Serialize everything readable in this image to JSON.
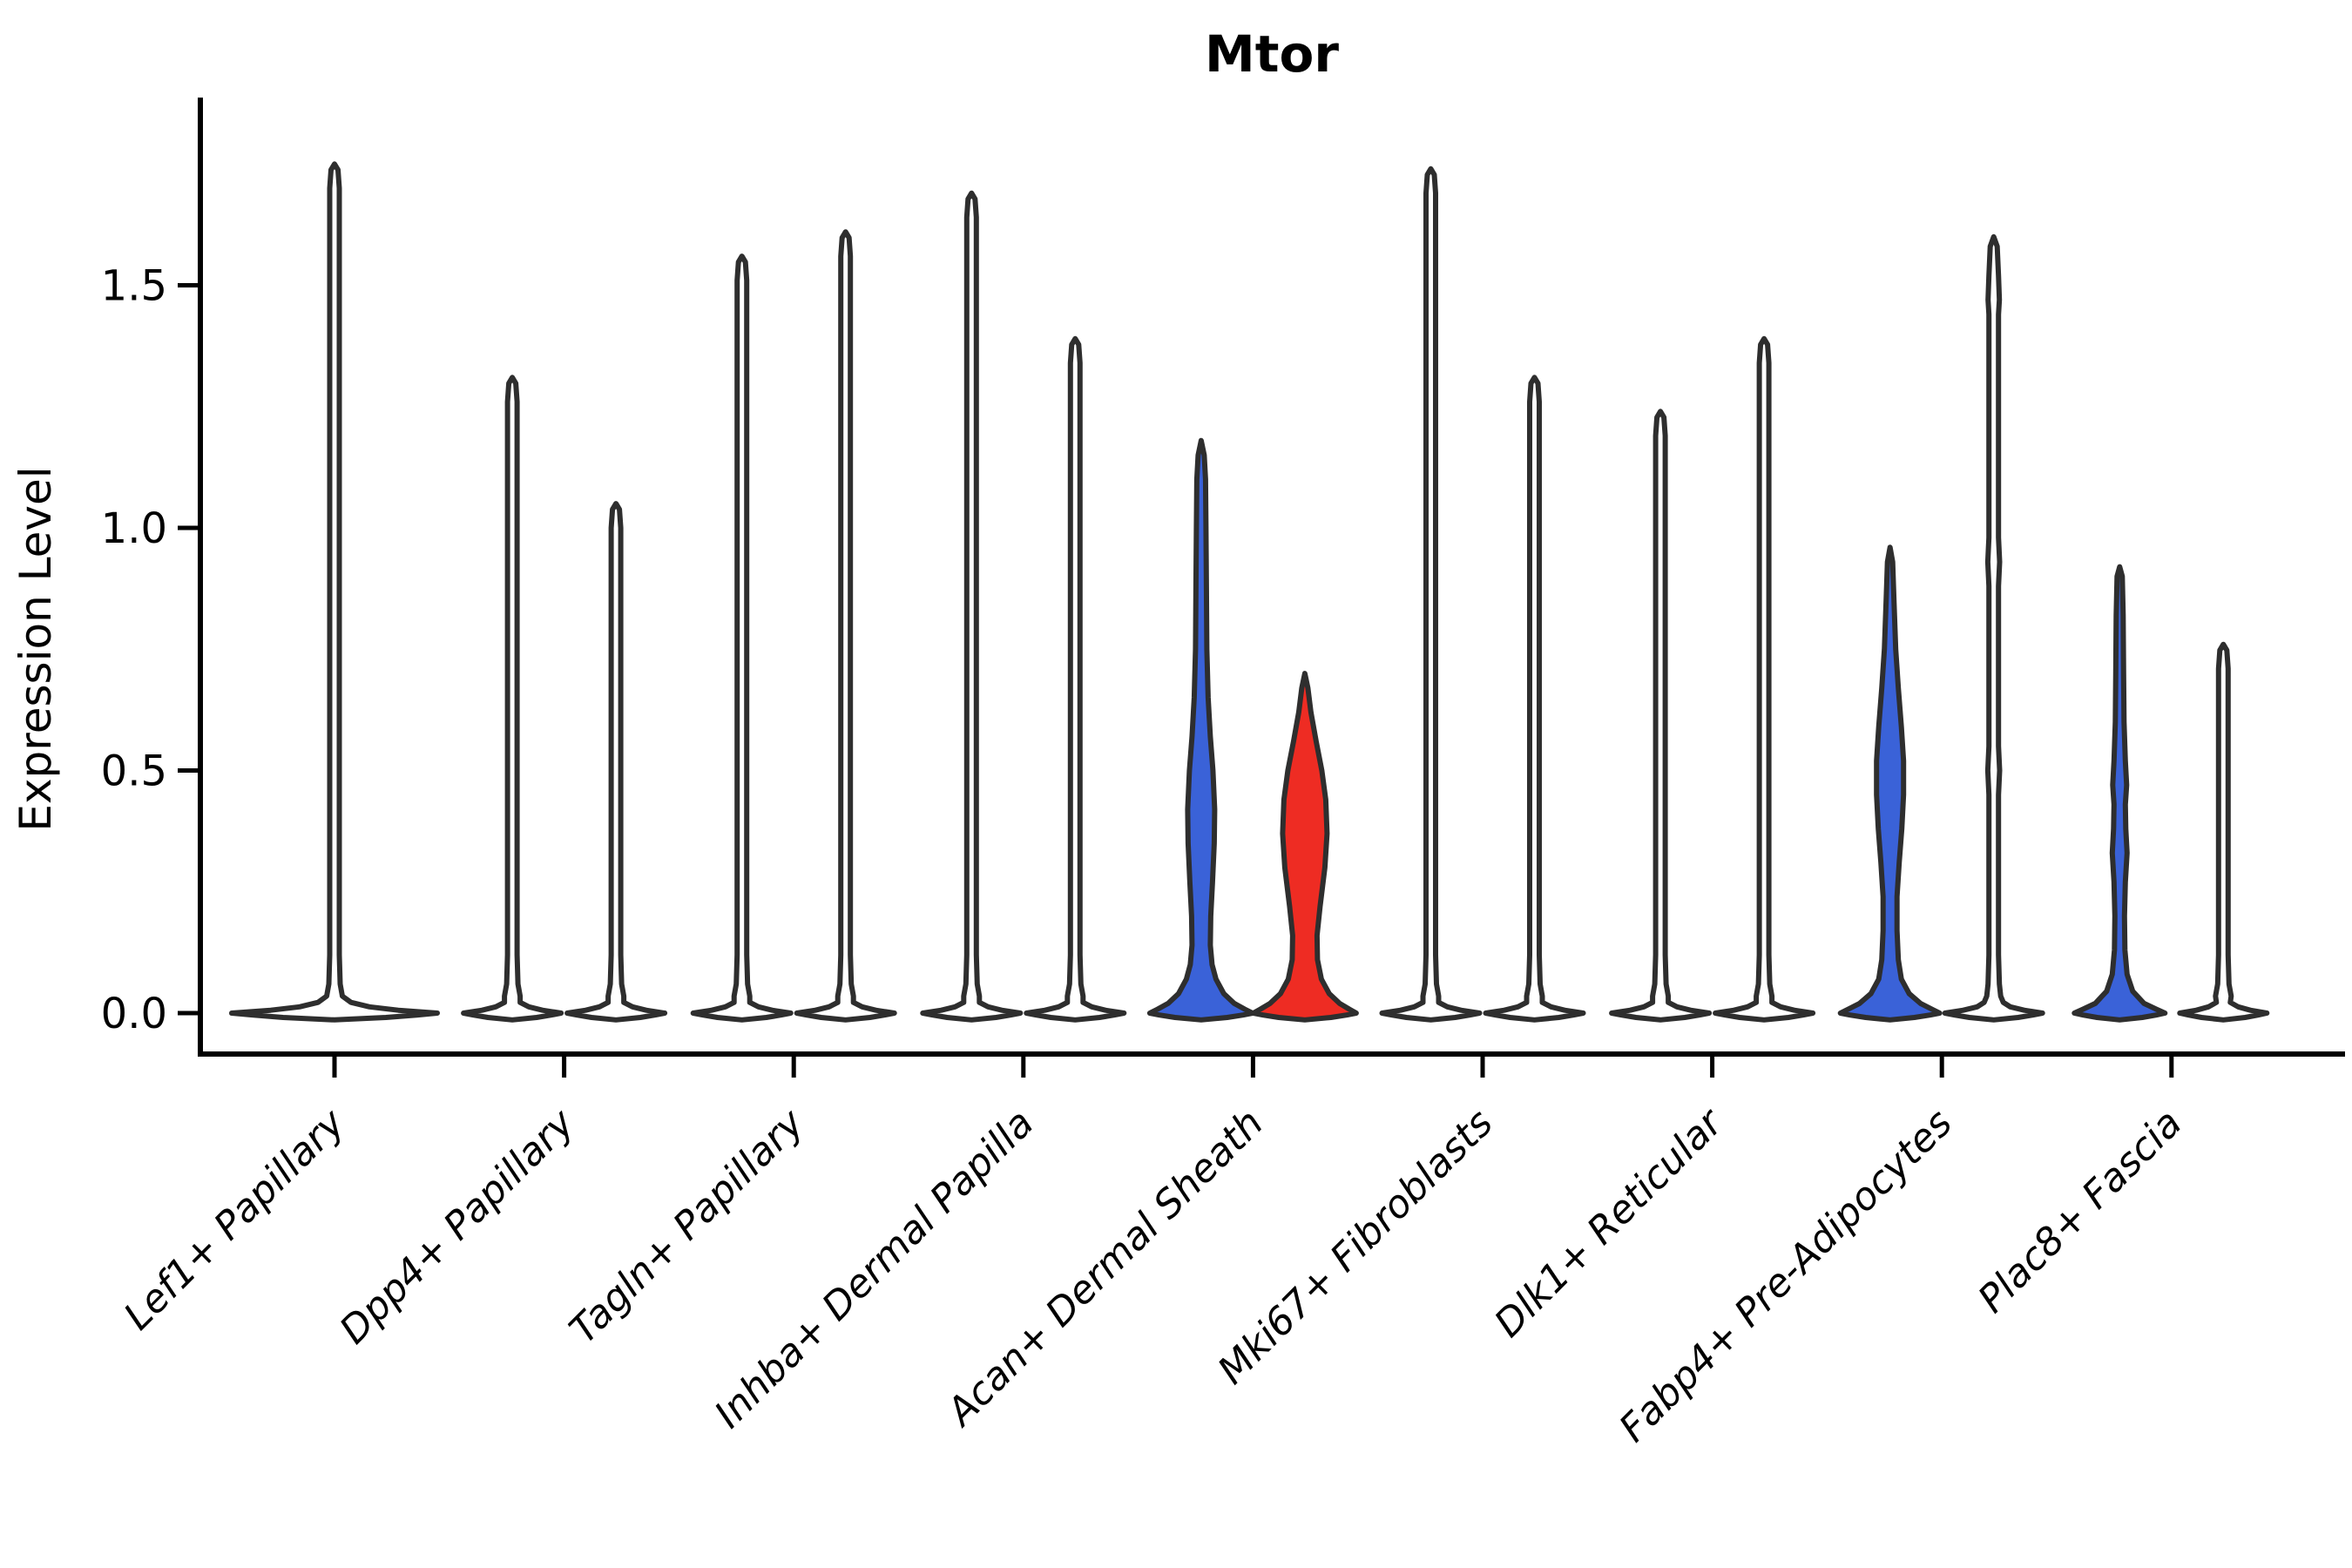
{
  "title": "Mtor",
  "y_axis": {
    "label": "Expression Level",
    "tick_labels": [
      "0.0",
      "0.5",
      "1.0",
      "1.5"
    ],
    "tick_values": [
      0,
      0.5,
      1.0,
      1.5
    ]
  },
  "chart_data": {
    "type": "violin",
    "title": "Mtor",
    "xlabel": "",
    "ylabel": "Expression Level",
    "ylim": [
      -0.05,
      1.89
    ],
    "grid": false,
    "legend": "none",
    "categories": [
      "Lef1+ Papillary",
      "Dpp4+ Papillary",
      "Tagln+ Papillary",
      "Inhba+ Dermal Papilla",
      "Acan+ Dermal Sheath",
      "Mki67+ Fibroblasts",
      "Dlk1+ Reticular",
      "Fabp4+ Pre-Adipocytes",
      "Plac8+ Fascia"
    ],
    "colors": {
      "blue": "#3A62D8",
      "red": "#EE2C23",
      "plain": "#ffffff",
      "outline": "#2E2E2E",
      "axis": "#000000"
    },
    "y_ticks": {
      "values": [
        0,
        0.5,
        1.0,
        1.5
      ],
      "labels": [
        "0.0",
        "0.5",
        "1.0",
        "1.5"
      ]
    },
    "groups": [
      {
        "category": "Lef1+ Papillary",
        "violins": [
          {
            "offset": 0,
            "fill": "plain",
            "base_halfwidth": 118,
            "max": 1.75
          }
        ]
      },
      {
        "category": "Dpp4+ Papillary",
        "violins": [
          {
            "offset": -1,
            "fill": "plain",
            "base_halfwidth": 56,
            "max": 1.31
          },
          {
            "offset": 1,
            "fill": "plain",
            "base_halfwidth": 56,
            "max": 1.05
          }
        ]
      },
      {
        "category": "Tagln+ Papillary",
        "violins": [
          {
            "offset": -1,
            "fill": "plain",
            "base_halfwidth": 56,
            "max": 1.56
          },
          {
            "offset": 1,
            "fill": "plain",
            "base_halfwidth": 56,
            "max": 1.61
          }
        ]
      },
      {
        "category": "Inhba+ Dermal Papilla",
        "violins": [
          {
            "offset": -1,
            "fill": "plain",
            "base_halfwidth": 56,
            "max": 1.69
          },
          {
            "offset": 1,
            "fill": "plain",
            "base_halfwidth": 56,
            "max": 1.39
          }
        ]
      },
      {
        "category": "Acan+ Dermal Sheath",
        "violins": [
          {
            "offset": -1,
            "fill": "blue",
            "max": 1.18,
            "profile": [
              [
                -0.014,
                0
              ],
              [
                -0.009,
                30
              ],
              [
                -0.004,
                48
              ],
              [
                0,
                59
              ],
              [
                0.008,
                50
              ],
              [
                0.02,
                38
              ],
              [
                0.04,
                26
              ],
              [
                0.07,
                17
              ],
              [
                0.1,
                12.5
              ],
              [
                0.14,
                10.5
              ],
              [
                0.2,
                11
              ],
              [
                0.27,
                13
              ],
              [
                0.35,
                15
              ],
              [
                0.42,
                15.5
              ],
              [
                0.5,
                13.5
              ],
              [
                0.57,
                10.5
              ],
              [
                0.65,
                8
              ],
              [
                0.75,
                6.5
              ],
              [
                0.88,
                6
              ],
              [
                1.0,
                5.5
              ],
              [
                1.1,
                5
              ],
              [
                1.15,
                3.5
              ],
              [
                1.18,
                0
              ]
            ]
          },
          {
            "offset": 1,
            "fill": "red",
            "max": 0.7,
            "profile": [
              [
                -0.014,
                0
              ],
              [
                -0.009,
                30
              ],
              [
                -0.004,
                48
              ],
              [
                0,
                59
              ],
              [
                0.008,
                51
              ],
              [
                0.02,
                40
              ],
              [
                0.04,
                28
              ],
              [
                0.07,
                19
              ],
              [
                0.11,
                14.5
              ],
              [
                0.16,
                14
              ],
              [
                0.22,
                17.5
              ],
              [
                0.3,
                23
              ],
              [
                0.37,
                25.5
              ],
              [
                0.44,
                24
              ],
              [
                0.5,
                19.5
              ],
              [
                0.56,
                13
              ],
              [
                0.62,
                7
              ],
              [
                0.67,
                3.5
              ],
              [
                0.7,
                0
              ]
            ]
          }
        ]
      },
      {
        "category": "Mki67+ Fibroblasts",
        "violins": [
          {
            "offset": -1,
            "fill": "plain",
            "base_halfwidth": 56,
            "max": 1.74
          },
          {
            "offset": 1,
            "fill": "plain",
            "base_halfwidth": 56,
            "max": 1.31
          }
        ]
      },
      {
        "category": "Dlk1+ Reticular",
        "violins": [
          {
            "offset": -1,
            "fill": "plain",
            "base_halfwidth": 56,
            "max": 1.24
          },
          {
            "offset": 1,
            "fill": "plain",
            "base_halfwidth": 56,
            "max": 1.39
          }
        ]
      },
      {
        "category": "Fabp4+ Pre-Adipocytes",
        "violins": [
          {
            "offset": -1,
            "fill": "blue",
            "max": 0.96,
            "profile": [
              [
                -0.014,
                0
              ],
              [
                -0.009,
                28
              ],
              [
                -0.004,
                46
              ],
              [
                0,
                57
              ],
              [
                0.008,
                48
              ],
              [
                0.02,
                35
              ],
              [
                0.04,
                22
              ],
              [
                0.07,
                13
              ],
              [
                0.11,
                9.5
              ],
              [
                0.17,
                8
              ],
              [
                0.24,
                8
              ],
              [
                0.31,
                10.5
              ],
              [
                0.38,
                13.5
              ],
              [
                0.45,
                15.5
              ],
              [
                0.52,
                15.5
              ],
              [
                0.59,
                13
              ],
              [
                0.67,
                9.5
              ],
              [
                0.75,
                6.5
              ],
              [
                0.85,
                4.5
              ],
              [
                0.93,
                3
              ],
              [
                0.96,
                0
              ]
            ]
          },
          {
            "offset": 1,
            "fill": "plain",
            "max": 1.6,
            "profile": [
              [
                -0.014,
                0
              ],
              [
                -0.009,
                28
              ],
              [
                -0.004,
                45
              ],
              [
                0,
                56
              ],
              [
                0.006,
                35
              ],
              [
                0.013,
                19
              ],
              [
                0.022,
                11
              ],
              [
                0.035,
                8
              ],
              [
                0.06,
                6.5
              ],
              [
                0.12,
                5.5
              ],
              [
                0.3,
                5.5
              ],
              [
                0.45,
                5.5
              ],
              [
                0.5,
                6.8
              ],
              [
                0.55,
                5.5
              ],
              [
                0.75,
                5.5
              ],
              [
                0.88,
                5.5
              ],
              [
                0.93,
                6.8
              ],
              [
                0.98,
                5.5
              ],
              [
                1.2,
                5.5
              ],
              [
                1.44,
                5.5
              ],
              [
                1.47,
                6.5
              ],
              [
                1.52,
                5.5
              ],
              [
                1.58,
                4
              ],
              [
                1.6,
                0
              ]
            ]
          }
        ]
      },
      {
        "category": "Plac8+ Fascia",
        "violins": [
          {
            "offset": -1,
            "fill": "blue",
            "max": 0.92,
            "profile": [
              [
                -0.014,
                0
              ],
              [
                -0.009,
                26
              ],
              [
                -0.004,
                42
              ],
              [
                0,
                52
              ],
              [
                0.008,
                42
              ],
              [
                0.02,
                28
              ],
              [
                0.045,
                15
              ],
              [
                0.08,
                8.5
              ],
              [
                0.13,
                6
              ],
              [
                0.2,
                5.5
              ],
              [
                0.27,
                6.5
              ],
              [
                0.33,
                8.5
              ],
              [
                0.38,
                7
              ],
              [
                0.43,
                6.5
              ],
              [
                0.47,
                8
              ],
              [
                0.52,
                6.5
              ],
              [
                0.6,
                5
              ],
              [
                0.7,
                4.5
              ],
              [
                0.82,
                4
              ],
              [
                0.9,
                3
              ],
              [
                0.92,
                0
              ]
            ]
          },
          {
            "offset": 1,
            "fill": "plain",
            "base_halfwidth": 50,
            "max": 0.76
          }
        ]
      }
    ]
  }
}
